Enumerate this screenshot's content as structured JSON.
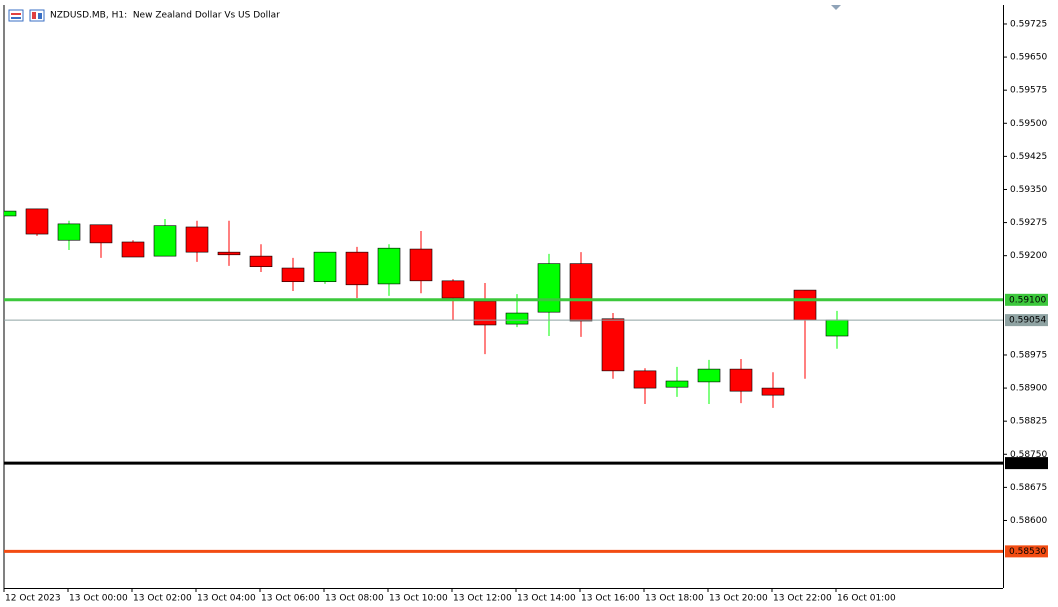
{
  "chart_data": {
    "type": "candlestick",
    "title": "NZDUSD.MB, H1:  New Zealand Dollar Vs US Dollar",
    "categories": [
      "12 Oct 2023",
      null,
      "13 Oct 00:00",
      null,
      "13 Oct 02:00",
      null,
      "13 Oct 04:00",
      null,
      "13 Oct 06:00",
      null,
      "13 Oct 08:00",
      null,
      "13 Oct 10:00",
      null,
      "13 Oct 12:00",
      null,
      "13 Oct 14:00",
      null,
      "13 Oct 16:00",
      null,
      "13 Oct 18:00",
      null,
      "13 Oct 20:00",
      null,
      "13 Oct 22:00",
      null,
      "16 Oct 01:00"
    ],
    "open": [
      0.5929,
      0.59306,
      0.59235,
      0.5927,
      0.59231,
      0.59199,
      0.59265,
      0.59208,
      0.59199,
      0.59172,
      0.59141,
      0.59208,
      0.59136,
      0.59215,
      0.59143,
      0.59097,
      0.59045,
      0.59072,
      0.59182,
      0.59057,
      0.58939,
      0.58902,
      0.58914,
      0.58943,
      0.589,
      0.59122,
      0.59018
    ],
    "high": [
      0.59301,
      0.59306,
      0.59279,
      0.5927,
      0.59235,
      0.59283,
      0.59279,
      0.59279,
      0.59226,
      0.59195,
      0.59208,
      0.5922,
      0.59226,
      0.59256,
      0.59147,
      0.59138,
      0.59113,
      0.59204,
      0.59208,
      0.5907,
      0.58945,
      0.58948,
      0.58964,
      0.58966,
      0.58936,
      0.59122,
      0.59075
    ],
    "low": [
      0.5929,
      0.59245,
      0.59213,
      0.59195,
      0.59197,
      0.59199,
      0.59186,
      0.59177,
      0.59163,
      0.5912,
      0.59136,
      0.59104,
      0.59109,
      0.59115,
      0.59054,
      0.58977,
      0.59038,
      0.59018,
      0.59016,
      0.58921,
      0.58864,
      0.5888,
      0.58864,
      0.58866,
      0.58855,
      0.58921,
      0.58989
    ],
    "close": [
      0.59301,
      0.59249,
      0.59272,
      0.59229,
      0.59197,
      0.59268,
      0.59208,
      0.59202,
      0.59175,
      0.59141,
      0.59208,
      0.59134,
      0.59217,
      0.59143,
      0.59104,
      0.59043,
      0.5907,
      0.59182,
      0.59052,
      0.58939,
      0.589,
      0.58916,
      0.58943,
      0.58893,
      0.58884,
      0.59054,
      0.59054
    ],
    "up_color": "#00ff00",
    "down_color": "#ff0000",
    "ylim": [
      0.58447,
      0.59768
    ],
    "yticks": [
      {
        "value": 0.586,
        "label": "0.58600"
      },
      0.58675,
      {
        "value": 0.5875,
        "label": "0.58750"
      },
      0.58825,
      {
        "value": 0.589,
        "label": "0.58900"
      },
      0.58975,
      {
        "value": 0.592,
        "label": "0.59200"
      },
      0.59275,
      {
        "value": 0.5935,
        "label": "0.59350"
      },
      0.59425,
      {
        "value": 0.595,
        "label": "0.59500"
      },
      0.59575,
      {
        "value": 0.5965,
        "label": "0.59650"
      },
      0.59725
    ],
    "levels": [
      {
        "value": 0.591,
        "label": "0.59100",
        "color": "#3cc83c",
        "width": 3
      },
      {
        "value": 0.59054,
        "label": "0.59054",
        "color": "#8fa3a3",
        "width": 1
      },
      {
        "value": 0.5873,
        "label": "0.58730",
        "color": "#000000",
        "width": 3
      },
      {
        "value": 0.5853,
        "label": "0.58530",
        "color": "#f24c12",
        "width": 3
      }
    ],
    "grid": false
  }
}
